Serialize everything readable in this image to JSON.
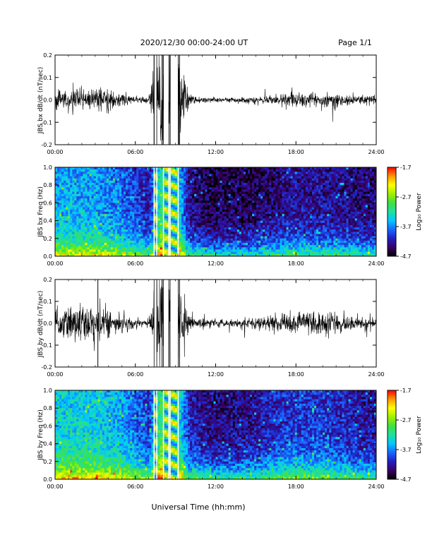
{
  "header": {
    "date_range": "2020/12/30  00:00-24:00 UT",
    "page": "Page 1/1"
  },
  "footer": {
    "xaxis_title": "Universal Time (hh:mm)"
  },
  "colorbar": {
    "label": "Log₁₀ Power",
    "ticks": [
      "-1.7",
      "-2.7",
      "-3.7",
      "-4.7"
    ],
    "range": [
      -4.7,
      -1.7
    ],
    "colors": [
      "#000000",
      "#3a0066",
      "#2020c0",
      "#1a66ff",
      "#00c8ff",
      "#20e0a0",
      "#40e040",
      "#a0f000",
      "#ffff00",
      "#ff9900",
      "#ff0000"
    ]
  },
  "chart_data": [
    {
      "type": "line",
      "panel": "bx_waveform",
      "ylabel": "JBS bx dB/dt (nT/sec)",
      "xlim": [
        0,
        24
      ],
      "ylim": [
        -0.2,
        0.2
      ],
      "xticks": [
        "00:00",
        "06:00",
        "12:00",
        "18:00",
        "24:00"
      ],
      "yticks": [
        "0.2",
        "0.1",
        "0.0",
        "-0.1",
        "-0.2"
      ],
      "amplitude_hourly": [
        0.045,
        0.05,
        0.05,
        0.06,
        0.05,
        0.035,
        0.018,
        0.012,
        0.3,
        0.3,
        0.025,
        0.015,
        0.012,
        0.012,
        0.012,
        0.018,
        0.025,
        0.03,
        0.035,
        0.035,
        0.035,
        0.03,
        0.03,
        0.025
      ],
      "gaps_hours": [
        [
          7.4,
          7.6
        ],
        [
          8.1,
          8.5
        ],
        [
          8.6,
          9.2
        ]
      ],
      "spikes_hours": [
        7.4,
        8.0,
        8.6,
        9.3
      ]
    },
    {
      "type": "heatmap",
      "panel": "bx_spectrogram",
      "ylabel": "JBS bx Freq (Hz)",
      "xlim": [
        0,
        24
      ],
      "ylim": [
        0.0,
        1.0
      ],
      "xticks": [
        "00:00",
        "06:00",
        "12:00",
        "18:00",
        "24:00"
      ],
      "yticks": [
        "1.0",
        "0.8",
        "0.6",
        "0.4",
        "0.2",
        "0.0"
      ],
      "intensity_hourly": [
        0.55,
        0.55,
        0.55,
        0.55,
        0.5,
        0.45,
        0.35,
        0.25,
        0.8,
        0.8,
        0.2,
        0.12,
        0.1,
        0.1,
        0.1,
        0.12,
        0.15,
        0.2,
        0.22,
        0.22,
        0.22,
        0.2,
        0.18,
        0.15
      ],
      "gaps_hours": [
        [
          7.4,
          7.6
        ],
        [
          8.1,
          8.5
        ],
        [
          8.6,
          9.2
        ]
      ]
    },
    {
      "type": "line",
      "panel": "by_waveform",
      "ylabel": "JBS by dB/dt (nT/sec)",
      "xlim": [
        0,
        24
      ],
      "ylim": [
        -0.2,
        0.2
      ],
      "xticks": [
        "00:00",
        "06:00",
        "12:00",
        "18:00",
        "24:00"
      ],
      "yticks": [
        "0.2",
        "0.1",
        "0.0",
        "-0.1",
        "-0.2"
      ],
      "amplitude_hourly": [
        0.06,
        0.08,
        0.09,
        0.12,
        0.08,
        0.05,
        0.025,
        0.015,
        0.3,
        0.3,
        0.04,
        0.025,
        0.02,
        0.02,
        0.025,
        0.03,
        0.04,
        0.05,
        0.055,
        0.06,
        0.06,
        0.05,
        0.04,
        0.035
      ],
      "gaps_hours": [
        [
          7.4,
          7.6
        ],
        [
          8.1,
          8.5
        ],
        [
          8.6,
          9.2
        ]
      ],
      "spikes_hours": [
        3.2,
        8.0,
        9.3
      ]
    },
    {
      "type": "heatmap",
      "panel": "by_spectrogram",
      "ylabel": "JBS by Freq (Hz)",
      "xlim": [
        0,
        24
      ],
      "ylim": [
        0.0,
        1.0
      ],
      "xticks": [
        "00:00",
        "06:00",
        "12:00",
        "18:00",
        "24:00"
      ],
      "yticks": [
        "1.0",
        "0.8",
        "0.6",
        "0.4",
        "0.2",
        "0.0"
      ],
      "intensity_hourly": [
        0.65,
        0.65,
        0.65,
        0.65,
        0.6,
        0.55,
        0.45,
        0.35,
        0.85,
        0.85,
        0.3,
        0.22,
        0.18,
        0.18,
        0.2,
        0.22,
        0.28,
        0.32,
        0.35,
        0.35,
        0.35,
        0.3,
        0.28,
        0.22
      ],
      "gaps_hours": [
        [
          7.4,
          7.6
        ],
        [
          8.1,
          8.5
        ],
        [
          8.6,
          9.2
        ]
      ]
    }
  ]
}
